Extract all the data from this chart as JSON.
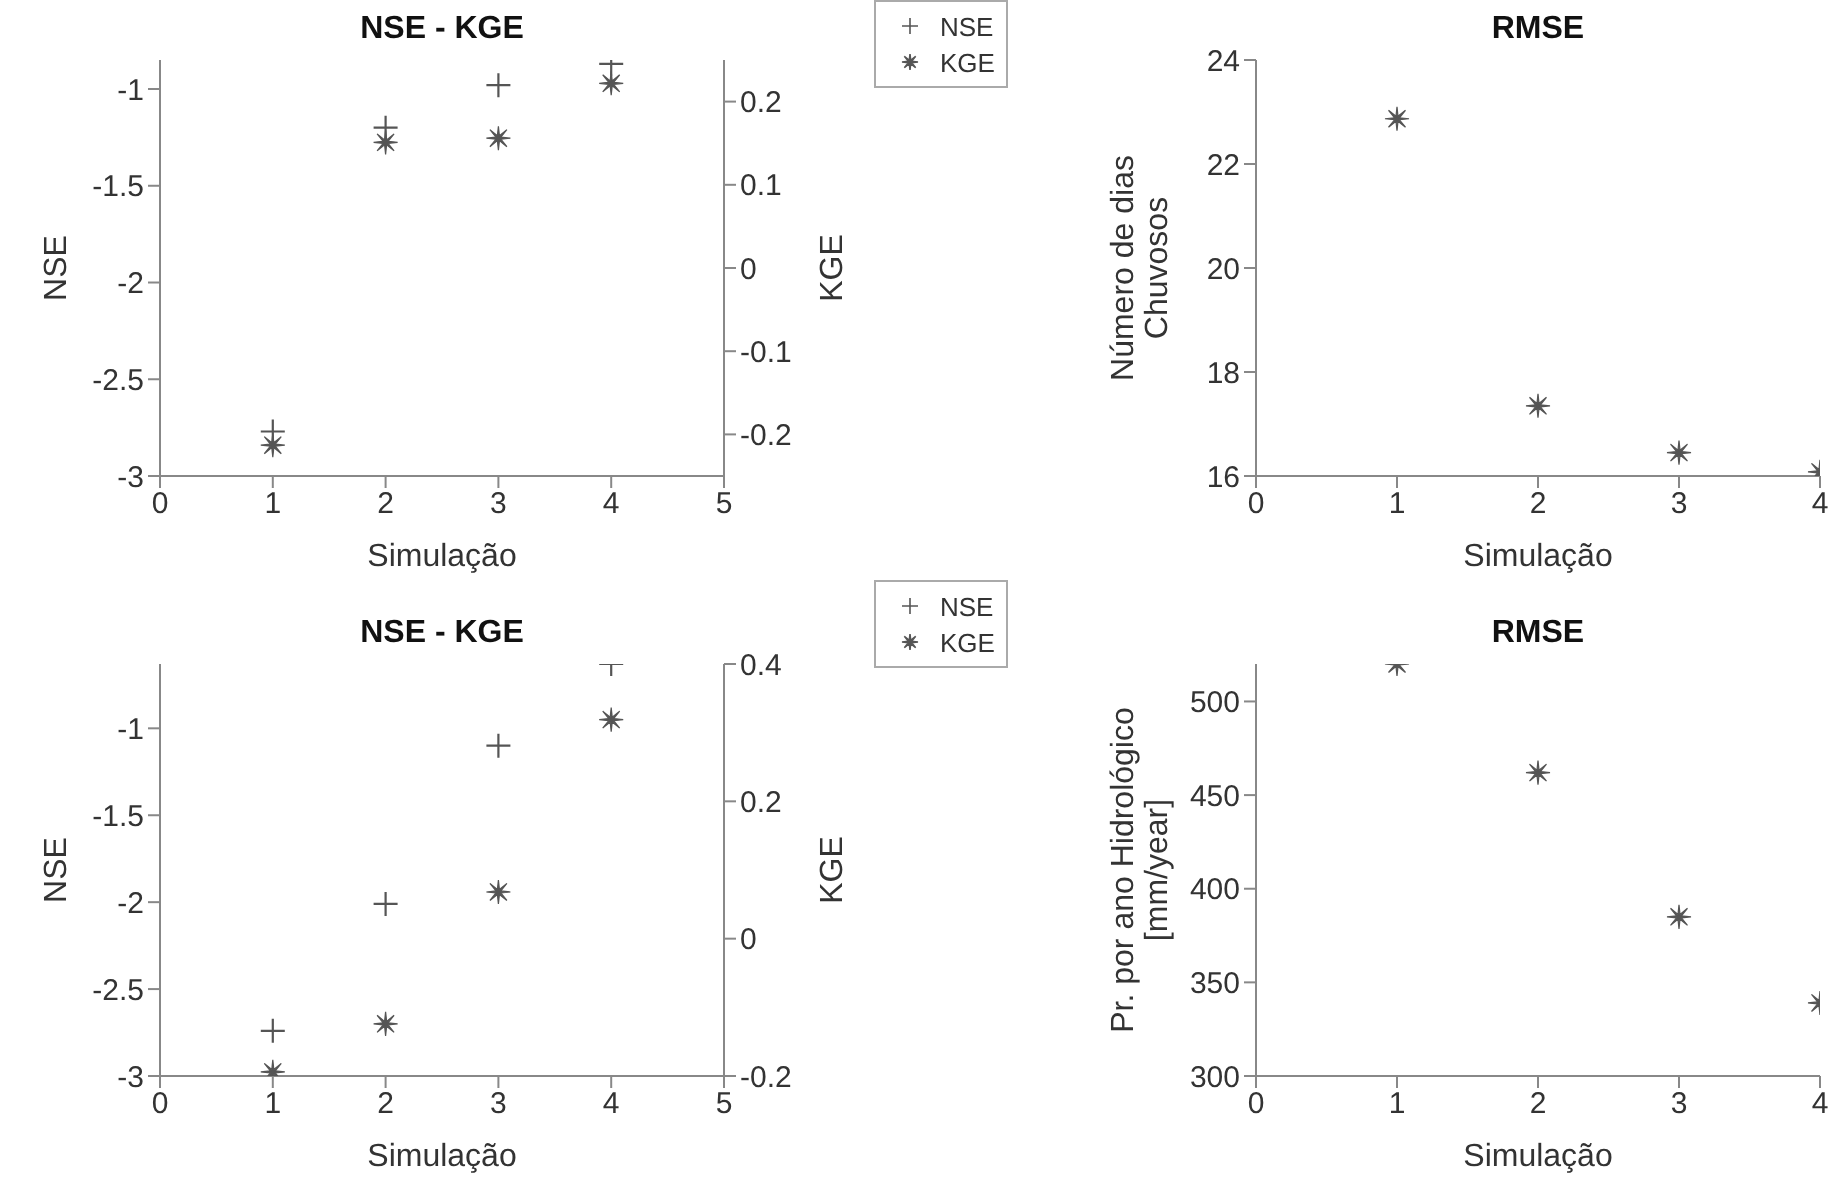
{
  "chart_data": [
    {
      "type": "scatter",
      "title": "NSE - KGE",
      "xlabel": "Simulação",
      "ylabel": "NSE",
      "y2label": "KGE",
      "x": [
        1,
        2,
        3,
        4
      ],
      "xlim": [
        0,
        5
      ],
      "xticks": [
        0,
        1,
        2,
        3,
        4,
        5
      ],
      "ylim": [
        -3,
        -0.85
      ],
      "yticks": [
        -3,
        -2.5,
        -2,
        -1.5,
        -1
      ],
      "y2lim": [
        -0.25,
        0.25
      ],
      "y2ticks": [
        -0.2,
        -0.1,
        0,
        0.1,
        0.2
      ],
      "legend": "top right",
      "series": [
        {
          "name": "NSE",
          "color": "#555555",
          "marker": "cross",
          "values": [
            -2.77,
            -1.2,
            -0.98,
            -0.87
          ]
        },
        {
          "name": "KGE",
          "color": "#555555",
          "marker": "star",
          "axis": "y2",
          "values": [
            -0.213,
            0.151,
            0.156,
            0.222
          ]
        }
      ]
    },
    {
      "type": "scatter",
      "title": "RMSE",
      "xlabel": "Simulação",
      "ylabel": "Número de dias\nChuvosos",
      "x": [
        1,
        2,
        3,
        4
      ],
      "xlim": [
        0,
        4
      ],
      "xticks": [
        0,
        1,
        2,
        3,
        4
      ],
      "ylim": [
        16,
        24
      ],
      "yticks": [
        16,
        18,
        20,
        22,
        24
      ],
      "series": [
        {
          "color": "#555555",
          "marker": "star",
          "values": [
            22.87,
            17.35,
            16.45,
            16.08
          ]
        }
      ]
    },
    {
      "type": "scatter",
      "title": "NSE - KGE",
      "xlabel": "Simulação",
      "ylabel": "NSE",
      "y2label": "KGE",
      "x": [
        1,
        2,
        3,
        4
      ],
      "xlim": [
        0,
        5
      ],
      "xticks": [
        0,
        1,
        2,
        3,
        4,
        5
      ],
      "ylim": [
        -3,
        -0.63
      ],
      "yticks": [
        -3,
        -2.5,
        -2,
        -1.5,
        -1
      ],
      "y2lim": [
        -0.2,
        0.4
      ],
      "y2ticks": [
        -0.2,
        0,
        0.2,
        0.4
      ],
      "legend": "top right",
      "series": [
        {
          "name": "NSE",
          "color": "#555555",
          "marker": "cross",
          "values": [
            -2.74,
            -2.01,
            -1.1,
            -0.63
          ]
        },
        {
          "name": "KGE",
          "color": "#555555",
          "marker": "star",
          "axis": "y2",
          "values": [
            -0.194,
            -0.124,
            0.068,
            0.319
          ]
        }
      ]
    },
    {
      "type": "scatter",
      "title": "RMSE",
      "xlabel": "Simulação",
      "ylabel": "Pr. por ano Hidrológico\n[mm/year]",
      "x": [
        1,
        2,
        3,
        4
      ],
      "xlim": [
        0,
        4
      ],
      "xticks": [
        0,
        1,
        2,
        3,
        4
      ],
      "ylim": [
        300,
        520
      ],
      "yticks": [
        300,
        350,
        400,
        450,
        500
      ],
      "series": [
        {
          "color": "#555555",
          "marker": "star",
          "values": [
            520,
            462,
            385,
            339
          ]
        }
      ]
    }
  ]
}
